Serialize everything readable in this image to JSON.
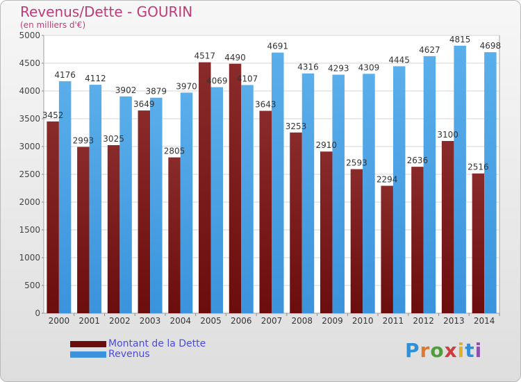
{
  "header": {
    "title": "Revenus/Dette - GOURIN",
    "subtitle": "(en milliers d'€)"
  },
  "legend": [
    {
      "label": "Montant de la Dette",
      "color": "#6b0d0d"
    },
    {
      "label": "Revenus",
      "color": "#3a93dc"
    }
  ],
  "logo": {
    "text": "Proxiti",
    "letter_colors": [
      "#2f8fd8",
      "#e0792b",
      "#4f9e3a",
      "#d23b3b",
      "#e0b02b",
      "#2f8fd8",
      "#8e4fb0"
    ]
  },
  "colors": {
    "dette": "#6b0d0d",
    "revenus": "#3a93dc",
    "title": "#c03a7a",
    "legend_text": "#4a4ae0"
  },
  "chart_data": {
    "type": "bar",
    "title": "Revenus/Dette - GOURIN",
    "subtitle": "(en milliers d'€)",
    "ylim": [
      0,
      5000
    ],
    "yticks": [
      0,
      500,
      1000,
      1500,
      2000,
      2500,
      3000,
      3500,
      4000,
      4500,
      5000
    ],
    "grid": true,
    "legend_position": "bottom-left",
    "categories": [
      "2000",
      "2001",
      "2002",
      "2003",
      "2004",
      "2005",
      "2006",
      "2007",
      "2008",
      "2009",
      "2010",
      "2011",
      "2012",
      "2013",
      "2014"
    ],
    "series": [
      {
        "name": "Montant de la Dette",
        "values": [
          3452,
          2993,
          3025,
          3649,
          2805,
          4517,
          4490,
          3643,
          3253,
          2910,
          2593,
          2294,
          2636,
          3100,
          2516
        ]
      },
      {
        "name": "Revenus",
        "values": [
          4176,
          4112,
          3902,
          3879,
          3970,
          4069,
          4107,
          4691,
          4316,
          4293,
          4309,
          4445,
          4627,
          4815,
          4698
        ]
      }
    ]
  }
}
